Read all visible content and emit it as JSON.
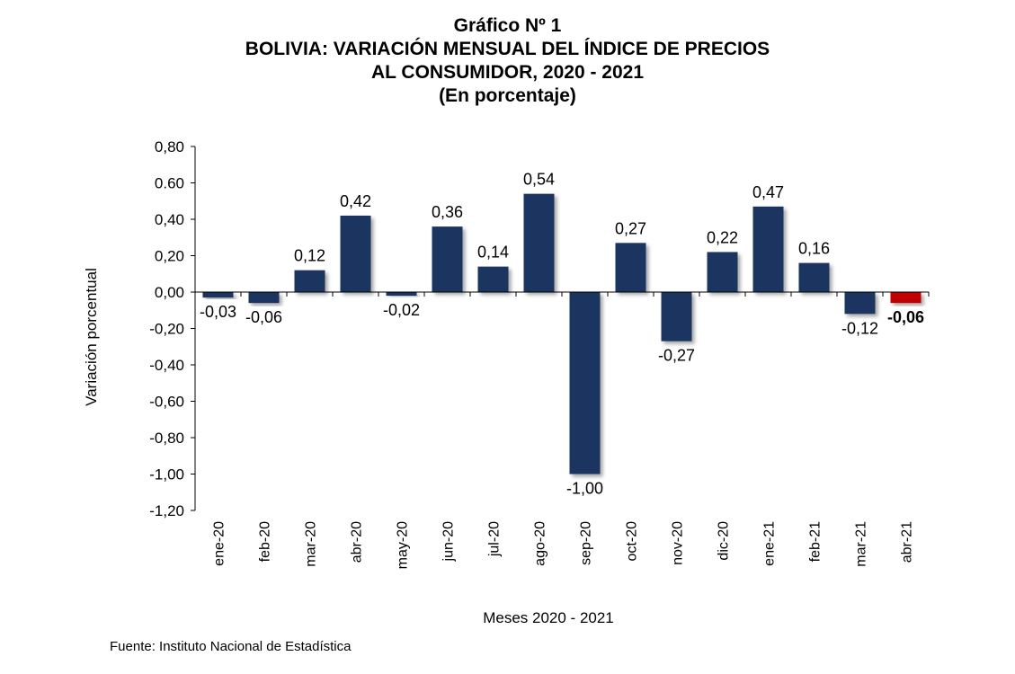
{
  "chart_data": {
    "type": "bar",
    "title": "Gráfico Nº 1",
    "subtitle_lines": [
      "BOLIVIA: VARIACIÓN MENSUAL DEL ÍNDICE DE PRECIOS",
      "AL CONSUMIDOR, 2020 - 2021",
      "(En porcentaje)"
    ],
    "xlabel": "Meses 2020 - 2021",
    "ylabel": "Variación porcentual",
    "ylim": [
      -1.2,
      0.8
    ],
    "yticks": [
      0.8,
      0.6,
      0.4,
      0.2,
      0.0,
      -0.2,
      -0.4,
      -0.6,
      -0.8,
      -1.0,
      -1.2
    ],
    "ytick_labels": [
      "0,80",
      "0.60",
      "0,40",
      "0,20",
      "0,00",
      "-0,20",
      "-0,40",
      "-0,60",
      "-0,80",
      "-1,00",
      "-1,20"
    ],
    "categories": [
      "ene-20",
      "feb-20",
      "mar-20",
      "abr-20",
      "may-20",
      "jun-20",
      "jul-20",
      "ago-20",
      "sep-20",
      "oct-20",
      "nov-20",
      "dic-20",
      "ene-21",
      "feb-21",
      "mar-21",
      "abr-21"
    ],
    "values": [
      -0.03,
      -0.06,
      0.12,
      0.42,
      -0.02,
      0.36,
      0.14,
      0.54,
      -1.0,
      0.27,
      -0.27,
      0.22,
      0.47,
      0.16,
      -0.12,
      -0.06
    ],
    "value_labels": [
      "-0,03",
      "-0,06",
      "0,12",
      "0,42",
      "-0,02",
      "0,36",
      "0,14",
      "0,54",
      "-1,00",
      "0,27",
      "-0,27",
      "0,22",
      "0,47",
      "0,16",
      "-0,12",
      "-0,06"
    ],
    "bar_color": "#1f3460",
    "highlight_color": "#c00000",
    "highlight_index": 15,
    "grid": false,
    "legend": "none"
  },
  "source": "Fuente: Instituto Nacional de Estadística"
}
